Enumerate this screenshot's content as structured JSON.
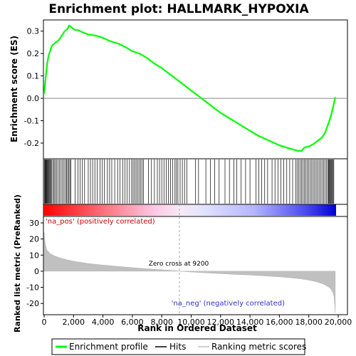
{
  "chart_data": {
    "type": "line",
    "title": "Enrichment plot: HALLMARK_HYPOXIA",
    "top_panel": {
      "ylabel": "Enrichment score (ES)",
      "ylim": [
        -0.27,
        0.35
      ],
      "yticks": [
        -0.2,
        -0.1,
        0.0,
        0.1,
        0.2,
        0.3
      ],
      "ytick_labels": [
        "-0.2",
        "-0.1",
        "0.0",
        "0.1",
        "0.2",
        "0.3"
      ],
      "series": [
        {
          "name": "Enrichment profile",
          "color": "#00ff00",
          "x": [
            0,
            100,
            200,
            300,
            400,
            500,
            600,
            800,
            1000,
            1200,
            1400,
            1600,
            1700,
            1900,
            2100,
            2300,
            2600,
            3000,
            3500,
            4000,
            4500,
            5000,
            5500,
            6000,
            6500,
            7000,
            7500,
            8000,
            8500,
            9000,
            9500,
            10000,
            10500,
            11000,
            11500,
            12000,
            12500,
            13000,
            13500,
            14000,
            14500,
            15000,
            15500,
            16000,
            16500,
            17000,
            17300,
            17500,
            17700,
            18000,
            18300,
            18600,
            18900,
            19100,
            19300,
            19500,
            19650,
            19750,
            19800
          ],
          "y": [
            0.02,
            0.09,
            0.15,
            0.19,
            0.21,
            0.23,
            0.24,
            0.25,
            0.26,
            0.28,
            0.3,
            0.31,
            0.325,
            0.315,
            0.305,
            0.305,
            0.295,
            0.285,
            0.28,
            0.27,
            0.255,
            0.245,
            0.23,
            0.21,
            0.2,
            0.18,
            0.155,
            0.135,
            0.11,
            0.085,
            0.06,
            0.035,
            0.01,
            -0.015,
            -0.04,
            -0.065,
            -0.085,
            -0.105,
            -0.125,
            -0.145,
            -0.165,
            -0.18,
            -0.195,
            -0.21,
            -0.22,
            -0.23,
            -0.235,
            -0.235,
            -0.22,
            -0.215,
            -0.205,
            -0.19,
            -0.175,
            -0.155,
            -0.12,
            -0.08,
            -0.04,
            -0.01,
            0.005
          ]
        }
      ]
    },
    "hits_panel": {
      "label": "Hits",
      "hit_ranks": [
        20,
        60,
        100,
        140,
        180,
        220,
        260,
        300,
        350,
        400,
        450,
        520,
        600,
        680,
        760,
        850,
        950,
        1050,
        1150,
        1250,
        1350,
        1450,
        1530,
        1600,
        1680,
        1750,
        1820,
        2100,
        2300,
        2450,
        2600,
        2750,
        3000,
        3150,
        3300,
        3450,
        3600,
        3800,
        3950,
        4100,
        4300,
        4450,
        4600,
        4800,
        5000,
        5150,
        5350,
        5500,
        5650,
        5800,
        5950,
        6050,
        6150,
        6250,
        6350,
        6450,
        6550,
        6650,
        6750,
        7100,
        7300,
        7500,
        7700,
        7850,
        8000,
        8150,
        8300,
        8450,
        8600,
        8750,
        8900,
        9000,
        9100,
        9250,
        9400,
        9550,
        9700,
        10300,
        10500,
        11000,
        11300,
        11600,
        11900,
        12300,
        12600,
        12900,
        13100,
        13400,
        13700,
        14000,
        14400,
        14600,
        14800,
        15000,
        15200,
        15500,
        15700,
        15900,
        16100,
        16300,
        16500,
        16700,
        16900,
        17100,
        17200,
        17300,
        17400,
        17500,
        17600,
        17700,
        17800,
        17900,
        18000,
        18100,
        18200,
        18300,
        18400,
        18500,
        18600,
        18700,
        18800,
        18900,
        19000,
        19100,
        19200,
        19300,
        19350,
        19400,
        19450,
        19500,
        19550,
        19600,
        19650,
        19700
      ]
    },
    "bottom_panel": {
      "ylabel": "Ranked list metric (PreRanked)",
      "ylim": [
        -27,
        34
      ],
      "yticks": [
        -20,
        -10,
        0,
        10,
        20,
        30
      ],
      "ytick_labels": [
        "-20",
        "-10",
        "0",
        "10",
        "20",
        "30"
      ],
      "series": [
        {
          "name": "Ranking metric scores",
          "color": "#c0c0c0",
          "x": [
            0,
            30,
            100,
            200,
            400,
            700,
            1000,
            1500,
            2000,
            3000,
            4000,
            5000,
            6000,
            7000,
            8000,
            9000,
            9200,
            10000,
            11000,
            12000,
            13000,
            14000,
            15000,
            16000,
            17000,
            17500,
            18000,
            18500,
            19000,
            19300,
            19500,
            19650,
            19720,
            19760,
            19800
          ],
          "y": [
            24,
            20,
            16,
            13,
            11,
            9.5,
            8.5,
            7.2,
            6.2,
            4.8,
            3.8,
            3.0,
            2.2,
            1.5,
            0.9,
            0.3,
            0,
            -0.5,
            -1.0,
            -1.5,
            -2.0,
            -2.4,
            -2.9,
            -3.5,
            -4.3,
            -4.8,
            -5.5,
            -6.5,
            -8.0,
            -9.5,
            -11.0,
            -13.5,
            -16.0,
            -20.0,
            -26.0
          ]
        }
      ]
    },
    "xlabel": "Rank in Ordered Dataset",
    "xlim": [
      0,
      20000
    ],
    "xticks": [
      0,
      2000,
      4000,
      6000,
      8000,
      10000,
      12000,
      14000,
      16000,
      18000,
      20000
    ],
    "xtick_labels": [
      "0",
      "2,000",
      "4,000",
      "6,000",
      "8,000",
      "10,000",
      "12,000",
      "14,000",
      "16,000",
      "18,000",
      "20,000"
    ],
    "zero_cross": 9200,
    "annotations": {
      "zero_cross": "Zero cross at 9200",
      "pos_label": "'na_pos' (positively correlated)",
      "neg_label": "'na_neg' (negatively correlated)"
    },
    "legend": {
      "placement": "bottom",
      "items": [
        "Enrichment profile",
        "Hits",
        "Ranking metric scores"
      ]
    },
    "colors": {
      "profile": "#00ff00",
      "hits": "#000000",
      "metric": "#c0c0c0",
      "pos_text": "#cc0000",
      "neg_text": "#3333cc"
    }
  }
}
